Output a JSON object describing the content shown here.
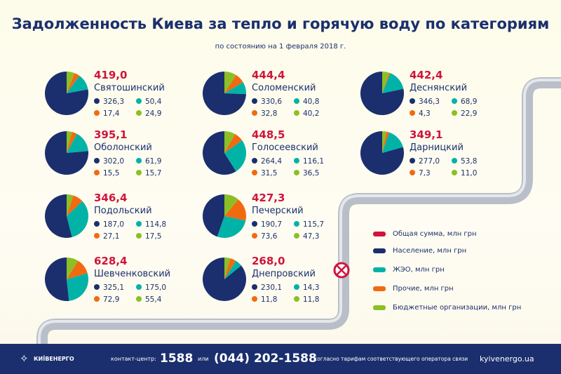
{
  "title": "Задолженность Киева за тепло и горячую воду по категориям",
  "subtitle": "по состоянию на 1 февраля 2018 г.",
  "colors": {
    "total": "#d0143c",
    "population": "#1b2f6e",
    "zheo": "#00b3a6",
    "other": "#f26a10",
    "budget": "#8cbf26"
  },
  "chart_data": {
    "type": "pie",
    "slice_order": [
      "budget",
      "other",
      "zheo",
      "population"
    ],
    "districts": [
      {
        "name": "Святошинский",
        "total": "419,0",
        "population": 326.3,
        "zheo": 50.4,
        "other": 17.4,
        "budget": 24.9,
        "labels": [
          "326,3",
          "50,4",
          "17,4",
          "24,9"
        ]
      },
      {
        "name": "Соломенский",
        "total": "444,4",
        "population": 330.6,
        "zheo": 40.8,
        "other": 32.8,
        "budget": 40.2,
        "labels": [
          "330,6",
          "40,8",
          "32,8",
          "40,2"
        ]
      },
      {
        "name": "Деснянский",
        "total": "442,4",
        "population": 346.3,
        "zheo": 68.9,
        "other": 4.3,
        "budget": 22.9,
        "labels": [
          "346,3",
          "68,9",
          "4,3",
          "22,9"
        ]
      },
      {
        "name": "Оболонский",
        "total": "395,1",
        "population": 302.0,
        "zheo": 61.9,
        "other": 15.5,
        "budget": 15.7,
        "labels": [
          "302,0",
          "61,9",
          "15,5",
          "15,7"
        ]
      },
      {
        "name": "Голосеевский",
        "total": "448,5",
        "population": 264.4,
        "zheo": 116.1,
        "other": 31.5,
        "budget": 36.5,
        "labels": [
          "264,4",
          "116,1",
          "31,5",
          "36,5"
        ]
      },
      {
        "name": "Дарницкий",
        "total": "349,1",
        "population": 277.0,
        "zheo": 53.8,
        "other": 7.3,
        "budget": 11.0,
        "labels": [
          "277,0",
          "53,8",
          "7,3",
          "11,0"
        ]
      },
      {
        "name": "Подольский",
        "total": "346,4",
        "population": 187.0,
        "zheo": 114.8,
        "other": 27.1,
        "budget": 17.5,
        "labels": [
          "187,0",
          "114,8",
          "27,1",
          "17,5"
        ]
      },
      {
        "name": "Печерский",
        "total": "427,3",
        "population": 190.7,
        "zheo": 115.7,
        "other": 73.6,
        "budget": 47.3,
        "labels": [
          "190,7",
          "115,7",
          "73,6",
          "47,3"
        ]
      },
      {
        "name": "Шевченковский",
        "total": "628,4",
        "population": 325.1,
        "zheo": 175.0,
        "other": 72.9,
        "budget": 55.4,
        "labels": [
          "325,1",
          "175,0",
          "72,9",
          "55,4"
        ]
      },
      {
        "name": "Днепровский",
        "total": "268,0",
        "population": 230.1,
        "zheo": 14.3,
        "other": 11.8,
        "budget": 11.8,
        "labels": [
          "230,1",
          "14,3",
          "11,8",
          "11,8"
        ]
      }
    ],
    "legend": [
      {
        "key": "total",
        "label": "Общая сумма, млн грн"
      },
      {
        "key": "population",
        "label": "Население, млн грн"
      },
      {
        "key": "zheo",
        "label": "ЖЭО, млн грн"
      },
      {
        "key": "other",
        "label": "Прочие, млн грн"
      },
      {
        "key": "budget",
        "label": "Бюджетные организации, млн грн"
      }
    ]
  },
  "footer": {
    "logo": "КИЇВЕНЕРГО",
    "contact_label": "контакт-центр:",
    "short_number": "1588",
    "or": "или",
    "phone": "(044) 202-1588",
    "note": "согласно тарифам соответствующего оператора связи",
    "site": "kyivenergo.ua"
  }
}
